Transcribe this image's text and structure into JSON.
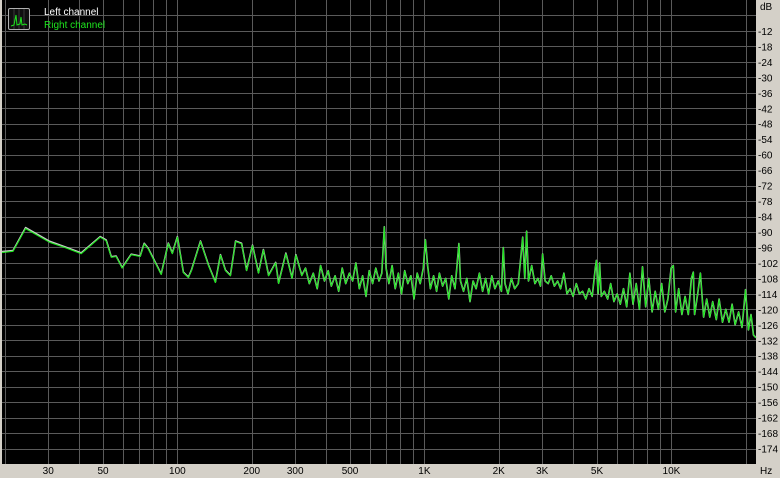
{
  "chart_data": {
    "type": "line",
    "title": "",
    "xlabel": "Hz",
    "ylabel": "dB",
    "xscale": "log",
    "xlim": [
      19.5,
      22000
    ],
    "ylim": [
      -180,
      0
    ],
    "grid": true,
    "legend_placement": "top-left",
    "background": "#000000",
    "grid_color": "#5a5a5a",
    "x_ticks": [
      {
        "v": 30,
        "label": "30"
      },
      {
        "v": 50,
        "label": "50"
      },
      {
        "v": 100,
        "label": "100"
      },
      {
        "v": 200,
        "label": "200"
      },
      {
        "v": 300,
        "label": "300"
      },
      {
        "v": 500,
        "label": "500"
      },
      {
        "v": 1000,
        "label": "1K"
      },
      {
        "v": 2000,
        "label": "2K"
      },
      {
        "v": 3000,
        "label": "3K"
      },
      {
        "v": 5000,
        "label": "5K"
      },
      {
        "v": 10000,
        "label": "10K"
      }
    ],
    "x_grid": [
      20,
      30,
      40,
      50,
      60,
      70,
      80,
      90,
      100,
      200,
      300,
      400,
      500,
      600,
      700,
      800,
      900,
      1000,
      2000,
      3000,
      4000,
      5000,
      6000,
      7000,
      8000,
      9000,
      10000,
      20000
    ],
    "y_ticks": [
      -12,
      -18,
      -24,
      -30,
      -36,
      -42,
      -48,
      -54,
      -60,
      -66,
      -72,
      -78,
      -84,
      -90,
      -96,
      -102,
      -108,
      -114,
      -120,
      -126,
      -132,
      -138,
      -144,
      -150,
      -156,
      -162,
      -168,
      -174
    ],
    "x": [
      19.5,
      21.6,
      24.3,
      30.4,
      35,
      40.8,
      48.7,
      51.5,
      54,
      56.5,
      59.8,
      65,
      70.7,
      73.4,
      76.2,
      86,
      91.9,
      95.4,
      100,
      105.8,
      110.8,
      114,
      124,
      133.7,
      142.6,
      149.5,
      156.6,
      164,
      172,
      182,
      190.7,
      201.5,
      213,
      223,
      234,
      250,
      257,
      275,
      291,
      302,
      319,
      330,
      342,
      355,
      368,
      380,
      394,
      408,
      420,
      435,
      450,
      465,
      480,
      497,
      512,
      528,
      545,
      562,
      580,
      598,
      617,
      636,
      655,
      672,
      688,
      700,
      718,
      740,
      762,
      785,
      808,
      832,
      857,
      882,
      908,
      935,
      962,
      990,
      1009,
      1030,
      1058,
      1090,
      1120,
      1150,
      1185,
      1220,
      1255,
      1290,
      1330,
      1380,
      1400,
      1440,
      1485,
      1530,
      1575,
      1620,
      1670,
      1720,
      1770,
      1820,
      1875,
      1930,
      1990,
      2050,
      2087,
      2120,
      2180,
      2250,
      2320,
      2400,
      2500,
      2550,
      2593,
      2640,
      2720,
      2800,
      2880,
      2950,
      3010,
      3080,
      3170,
      3260,
      3360,
      3460,
      3560,
      3670,
      3780,
      3890,
      4000,
      4120,
      4240,
      4370,
      4500,
      4640,
      4780,
      4920,
      4970,
      5050,
      5120,
      5200,
      5350,
      5520,
      5680,
      5850,
      6030,
      6210,
      6400,
      6590,
      6790,
      6990,
      7200,
      7420,
      7640,
      7870,
      8100,
      8350,
      8600,
      8860,
      9130,
      9400,
      9680,
      9970,
      10180,
      10400,
      10700,
      11030,
      11360,
      11700,
      12050,
      12260,
      12410,
      12780,
      13100,
      13500,
      13900,
      14300,
      14700,
      15200,
      15600,
      16100,
      16600,
      17100,
      17600,
      18100,
      18700,
      19300,
      19950,
      20500,
      21000,
      21500,
      22000
    ],
    "series": [
      {
        "name": "Left channel",
        "color": "#c8c8c8",
        "values": [
          -97.6,
          -97.2,
          -88.3,
          -93.6,
          -95.7,
          -98.1,
          -91.8,
          -93.1,
          -99.6,
          -99.3,
          -103.8,
          -98.6,
          -99.3,
          -94.4,
          -96.3,
          -106.3,
          -94.3,
          -98.2,
          -91.8,
          -105.6,
          -107.5,
          -104.8,
          -93.5,
          -102.8,
          -109.4,
          -98.8,
          -104.8,
          -106.8,
          -93.5,
          -94.4,
          -104.8,
          -95.1,
          -105.8,
          -96.8,
          -106.8,
          -101.8,
          -109.8,
          -98.2,
          -107.8,
          -98.8,
          -106.8,
          -104,
          -110,
          -106,
          -112,
          -103,
          -109,
          -105,
          -111,
          -107,
          -113,
          -104,
          -110,
          -106,
          -109,
          -102,
          -112,
          -107,
          -115,
          -105,
          -110,
          -104,
          -109,
          -106,
          -88,
          -104,
          -110,
          -103,
          -112,
          -106,
          -114,
          -105,
          -110,
          -107,
          -116,
          -106,
          -110,
          -104,
          -93,
          -103,
          -112,
          -107,
          -113,
          -106,
          -111,
          -108,
          -116,
          -107,
          -112,
          -94.5,
          -109,
          -113,
          -108,
          -117,
          -109,
          -112,
          -106,
          -113,
          -108,
          -114,
          -107,
          -112,
          -109,
          -113,
          -96,
          -110,
          -114,
          -108,
          -112,
          -110,
          -92,
          -108,
          -89.7,
          -109,
          -103,
          -110,
          -108,
          -111,
          -98.5,
          -109,
          -110,
          -107,
          -111,
          -109,
          -112,
          -106,
          -114,
          -112,
          -115,
          -110,
          -114,
          -113,
          -116,
          -112,
          -115,
          -104,
          -101,
          -114,
          -102,
          -115,
          -113,
          -116,
          -110,
          -117,
          -114,
          -118,
          -112,
          -119,
          -106,
          -118,
          -110,
          -120,
          -103.5,
          -119,
          -108,
          -121,
          -113,
          -120,
          -110,
          -121,
          -116,
          -104,
          -103,
          -121,
          -112,
          -122,
          -115,
          -122,
          -108,
          -105.6,
          -122,
          -114,
          -106,
          -123,
          -116,
          -123,
          -117,
          -124,
          -116,
          -125,
          -120,
          -125,
          -118,
          -126,
          -121,
          -127,
          -112.4,
          -128,
          -122,
          -130,
          -131
        ]
      },
      {
        "name": "Right channel",
        "color": "#1ee61e",
        "values": [
          -98,
          -97.5,
          -88.7,
          -94,
          -96,
          -98.4,
          -92,
          -93.4,
          -99.8,
          -99.5,
          -104,
          -98.8,
          -99.5,
          -94.6,
          -96.5,
          -106.5,
          -94.5,
          -98.4,
          -92,
          -105.8,
          -107.7,
          -105,
          -93.7,
          -103,
          -109.6,
          -99,
          -105,
          -107,
          -93.7,
          -94.6,
          -105,
          -95.3,
          -106,
          -97,
          -107,
          -102,
          -110,
          -98.4,
          -108,
          -99,
          -107,
          -104,
          -110,
          -106,
          -112,
          -103,
          -109,
          -105,
          -111,
          -107,
          -113,
          -104,
          -110,
          -106,
          -109,
          -102,
          -112,
          -107,
          -115,
          -105,
          -110,
          -104,
          -109,
          -106,
          -88,
          -104,
          -110,
          -103,
          -112,
          -106,
          -114,
          -105,
          -110,
          -107,
          -116,
          -106,
          -110,
          -104,
          -93,
          -103,
          -112,
          -107,
          -113,
          -106,
          -111,
          -108,
          -116,
          -107,
          -112,
          -94.5,
          -109,
          -113,
          -108,
          -117,
          -109,
          -112,
          -106,
          -113,
          -108,
          -114,
          -107,
          -112,
          -109,
          -113,
          -96,
          -110,
          -114,
          -108,
          -112,
          -110,
          -92,
          -108,
          -89.7,
          -109,
          -103,
          -110,
          -108,
          -111,
          -98.5,
          -109,
          -110,
          -107,
          -111,
          -109,
          -112,
          -106,
          -114,
          -112,
          -115,
          -110,
          -114,
          -113,
          -116,
          -112,
          -115,
          -104,
          -101,
          -114,
          -102,
          -115,
          -113,
          -116,
          -110,
          -117,
          -114,
          -118,
          -112,
          -119,
          -106,
          -118,
          -110,
          -120,
          -103.5,
          -119,
          -108,
          -121,
          -113,
          -120,
          -110,
          -121,
          -116,
          -104,
          -103,
          -121,
          -112,
          -122,
          -115,
          -122,
          -108,
          -105.6,
          -122,
          -114,
          -106,
          -123,
          -116,
          -123,
          -117,
          -124,
          -116,
          -125,
          -120,
          -125,
          -118,
          -126,
          -121,
          -127,
          -112.4,
          -128,
          -122,
          -130,
          -131
        ]
      }
    ]
  },
  "legend": {
    "left_label": "Left channel",
    "right_label": "Right channel"
  }
}
